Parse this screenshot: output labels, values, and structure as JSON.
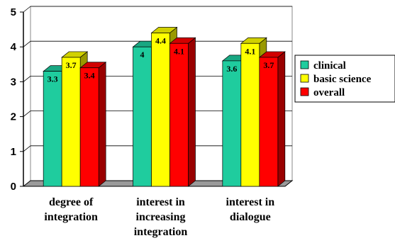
{
  "chart_data": {
    "type": "bar",
    "title": "",
    "xlabel": "",
    "ylabel": "",
    "ylim": [
      0,
      5
    ],
    "yticks": [
      "0",
      "1",
      "2",
      "3",
      "4",
      "5"
    ],
    "grid": true,
    "legend_position": "right",
    "categories": [
      [
        "degree of",
        "integration"
      ],
      [
        "interest in",
        "increasing",
        "integration"
      ],
      [
        "interest in",
        "dialogue"
      ]
    ],
    "series": [
      {
        "name": "clinical",
        "color": "#1fcc9e",
        "values": [
          3.3,
          4.0,
          3.6
        ],
        "labels": [
          "3.3",
          "4",
          "3.6"
        ]
      },
      {
        "name": "basic science",
        "color": "#ffff00",
        "values": [
          3.7,
          4.4,
          4.1
        ],
        "labels": [
          "3.7",
          "4.4",
          "4.1"
        ]
      },
      {
        "name": "overall",
        "color": "#ff0000",
        "values": [
          3.4,
          4.1,
          3.7
        ],
        "labels": [
          "3.4",
          "4.1",
          "3.7"
        ]
      }
    ]
  }
}
